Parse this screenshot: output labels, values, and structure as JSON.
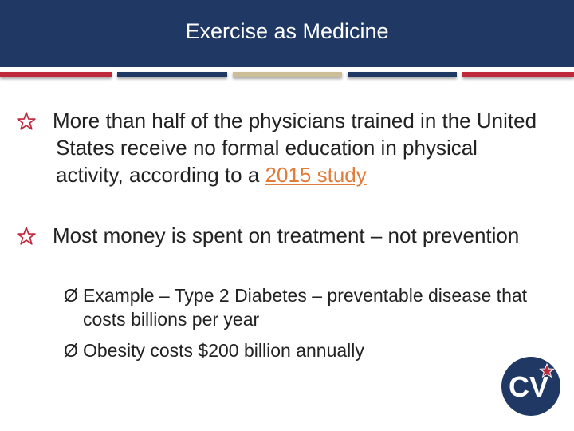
{
  "slide": {
    "title": "Exercise as Medicine"
  },
  "colors": {
    "header_bg": "#1f3864",
    "accent_red": "#c0283c",
    "accent_navy": "#1f3864",
    "accent_tan": "#cbbe98",
    "link": "#e07b39"
  },
  "bullets": [
    {
      "icon": "star-outline-icon",
      "text_before_link": "More than half of the physicians trained in the United States receive no formal education in physical activity, according to a ",
      "link_text": "2015 study"
    },
    {
      "icon": "star-outline-icon",
      "text": "Most money is spent on treatment – not prevention"
    }
  ],
  "sub_bullets": [
    {
      "marker": "Ø",
      "text": "Example – Type 2 Diabetes – preventable disease that costs billions per year"
    },
    {
      "marker": "Ø",
      "text": "Obesity costs $200 billion annually"
    }
  ],
  "logo": {
    "icon": "cv-logo-icon",
    "text": "CV"
  }
}
